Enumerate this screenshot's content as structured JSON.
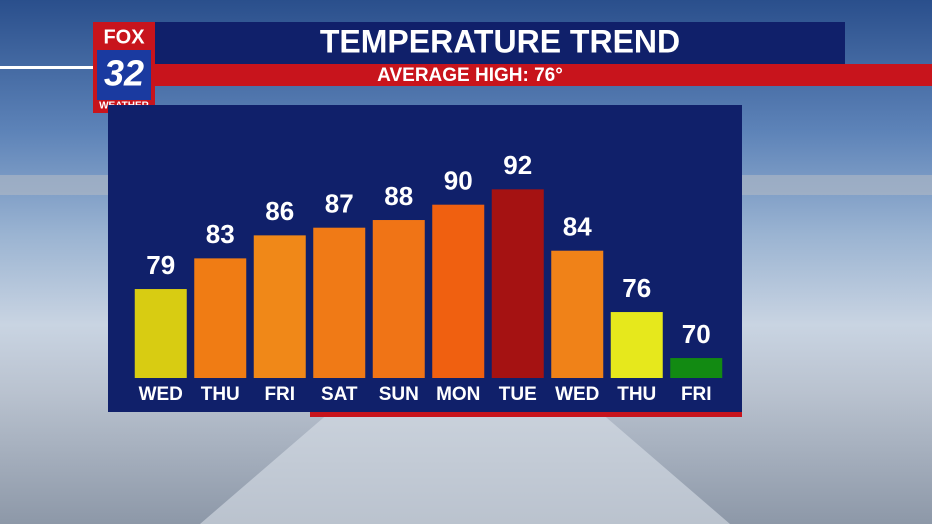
{
  "logo": {
    "network": "FOX",
    "channel": "32",
    "label": "WEATHER"
  },
  "chart_data": {
    "type": "bar",
    "title": "TEMPERATURE TREND",
    "subtitle": "AVERAGE HIGH: 76°",
    "categories": [
      "WED",
      "THU",
      "FRI",
      "SAT",
      "SUN",
      "MON",
      "TUE",
      "WED",
      "THU",
      "FRI"
    ],
    "values": [
      79,
      83,
      86,
      87,
      88,
      90,
      92,
      84,
      76,
      70
    ],
    "colors": [
      "#d8cc12",
      "#f07c14",
      "#f08818",
      "#f07a16",
      "#f07416",
      "#f06010",
      "#a51212",
      "#f08218",
      "#e6e81c",
      "#128a12"
    ],
    "ylim": [
      67.4,
      100
    ]
  }
}
